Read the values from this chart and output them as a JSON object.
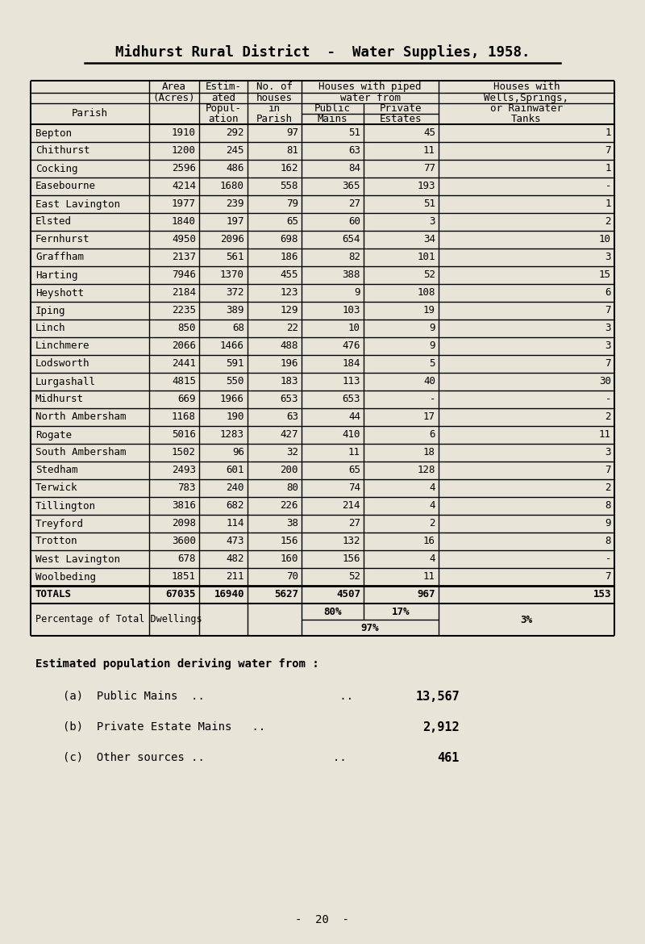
{
  "title": "Midhurst Rural District  -  Water Supplies, 1958.",
  "bg_color": "#e8e4d8",
  "parishes": [
    [
      "Bepton",
      1910,
      292,
      97,
      51,
      45,
      "1"
    ],
    [
      "Chithurst",
      1200,
      245,
      81,
      63,
      11,
      "7"
    ],
    [
      "Cocking",
      2596,
      486,
      162,
      84,
      77,
      "1"
    ],
    [
      "Easebourne",
      4214,
      1680,
      558,
      365,
      193,
      "-"
    ],
    [
      "East Lavington",
      1977,
      239,
      79,
      27,
      51,
      "1"
    ],
    [
      "Elsted",
      1840,
      197,
      65,
      60,
      3,
      "2"
    ],
    [
      "Fernhurst",
      4950,
      2096,
      698,
      654,
      34,
      "10"
    ],
    [
      "Graffham",
      2137,
      561,
      186,
      82,
      101,
      "3"
    ],
    [
      "Harting",
      7946,
      1370,
      455,
      388,
      52,
      "15"
    ],
    [
      "Heyshott",
      2184,
      372,
      123,
      9,
      108,
      "6"
    ],
    [
      "Iping",
      2235,
      389,
      129,
      103,
      19,
      "7"
    ],
    [
      "Linch",
      850,
      68,
      22,
      10,
      9,
      "3"
    ],
    [
      "Linchmere",
      2066,
      1466,
      488,
      476,
      9,
      "3"
    ],
    [
      "Lodsworth",
      2441,
      591,
      196,
      184,
      5,
      "7"
    ],
    [
      "Lurgashall",
      4815,
      550,
      183,
      113,
      40,
      "30"
    ],
    [
      "Midhurst",
      669,
      1966,
      653,
      653,
      "-",
      "-"
    ],
    [
      "North Ambersham",
      1168,
      190,
      63,
      44,
      17,
      "2"
    ],
    [
      "Rogate",
      5016,
      1283,
      427,
      410,
      6,
      "11"
    ],
    [
      "South Ambersham",
      1502,
      96,
      32,
      11,
      18,
      "3"
    ],
    [
      "Stedham",
      2493,
      601,
      200,
      65,
      128,
      "7"
    ],
    [
      "Terwick",
      783,
      240,
      80,
      74,
      4,
      "2"
    ],
    [
      "Tillington",
      3816,
      682,
      226,
      214,
      4,
      "8"
    ],
    [
      "Treyford",
      2098,
      114,
      38,
      27,
      2,
      "9"
    ],
    [
      "Trotton",
      3600,
      473,
      156,
      132,
      16,
      "8"
    ],
    [
      "West Lavington",
      678,
      482,
      160,
      156,
      4,
      "-"
    ],
    [
      "Woolbeding",
      1851,
      211,
      70,
      52,
      11,
      "7"
    ]
  ],
  "totals": [
    "TOTALS",
    "67035",
    "16940",
    "5627",
    "4507",
    "967",
    "153"
  ],
  "pct_label": "Percentage of Total Dwellings",
  "pct_public": "80%",
  "pct_private": "17%",
  "pct_combined": "97%",
  "pct_wells": "3%",
  "footer_title": "Estimated population deriving water from :",
  "footer_items": [
    [
      "(a)  Public Mains  ..                    ..",
      "13,567"
    ],
    [
      "(b)  Private Estate Mains   ..",
      "2,912"
    ],
    [
      "(c)  Other sources ..                   ..",
      "461"
    ]
  ],
  "page_num": "-  20  -",
  "font_size_title": 12.5,
  "font_size_table": 9.0,
  "font_size_footer": 10.0
}
